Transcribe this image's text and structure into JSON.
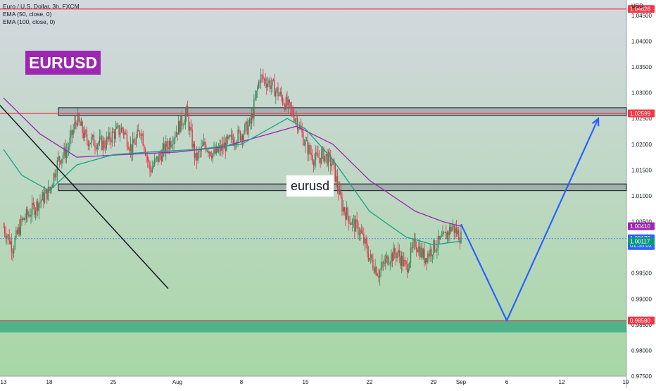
{
  "legend": {
    "symbol": "Euro / U.S. Dollar, 3h, FXCM",
    "ema50": "EMA (50, close, 0)",
    "ema100": "EMA (100, close, 0)"
  },
  "symbol_badge": "EURUSD",
  "text_note": "eurusd",
  "colors": {
    "background_top": "#d3d8df",
    "background_bottom": "#a7d7a5",
    "bull": "#2e8b57",
    "bear": "#ef2e4a",
    "ema50": "#14a38b",
    "ema100": "#9c27b0",
    "resistance_line": "#f23645",
    "projection": "#2962ff",
    "zone_fill": "#8a9098",
    "demand_zone": "#26a27c",
    "badge": "#9c27b0"
  },
  "chart_data": {
    "type": "candlestick",
    "symbol": "EURUSD",
    "timeframe": "3h",
    "currency": "USD",
    "ylim": [
      0.975,
      1.048
    ],
    "y_ticks": [
      "1.04500",
      "1.04000",
      "1.03500",
      "1.03000",
      "1.02500",
      "1.02000",
      "1.01500",
      "1.01000",
      "1.00500",
      "0.99500",
      "0.99000",
      "0.98500",
      "0.98000",
      "0.97500"
    ],
    "x_ticks": [
      {
        "label": "13",
        "date": "2022-07-13"
      },
      {
        "label": "18",
        "date": "2022-07-18"
      },
      {
        "label": "25",
        "date": "2022-07-25"
      },
      {
        "label": "Aug",
        "date": "2022-08-01"
      },
      {
        "label": "8",
        "date": "2022-08-08"
      },
      {
        "label": "15",
        "date": "2022-08-15"
      },
      {
        "label": "22",
        "date": "2022-08-22"
      },
      {
        "label": "29",
        "date": "2022-08-29"
      },
      {
        "label": "Sep",
        "date": "2022-09-01"
      },
      {
        "label": "6",
        "date": "2022-09-06"
      },
      {
        "label": "12",
        "date": "2022-09-12"
      },
      {
        "label": "19",
        "date": "2022-09-19"
      }
    ],
    "price_path": [
      [
        "2022-07-13",
        1.004
      ],
      [
        "2022-07-14",
        1.0
      ],
      [
        "2022-07-15",
        1.005
      ],
      [
        "2022-07-17",
        1.009
      ],
      [
        "2022-07-18",
        1.011
      ],
      [
        "2022-07-19",
        1.017
      ],
      [
        "2022-07-20",
        1.019
      ],
      [
        "2022-07-21",
        1.025
      ],
      [
        "2022-07-22",
        1.021
      ],
      [
        "2022-07-24",
        1.02
      ],
      [
        "2022-07-25",
        1.022
      ],
      [
        "2022-07-26",
        1.023
      ],
      [
        "2022-07-27",
        1.019
      ],
      [
        "2022-07-28",
        1.023
      ],
      [
        "2022-07-29",
        1.015
      ],
      [
        "2022-07-31",
        1.02
      ],
      [
        "2022-08-01",
        1.023
      ],
      [
        "2022-08-02",
        1.026
      ],
      [
        "2022-08-03",
        1.017
      ],
      [
        "2022-08-04",
        1.02
      ],
      [
        "2022-08-05",
        1.018
      ],
      [
        "2022-08-07",
        1.021
      ],
      [
        "2022-08-08",
        1.022
      ],
      [
        "2022-08-09",
        1.024
      ],
      [
        "2022-08-10",
        1.033
      ],
      [
        "2022-08-11",
        1.032
      ],
      [
        "2022-08-12",
        1.03
      ],
      [
        "2022-08-14",
        1.025
      ],
      [
        "2022-08-15",
        1.02
      ],
      [
        "2022-08-16",
        1.017
      ],
      [
        "2022-08-17",
        1.018
      ],
      [
        "2022-08-18",
        1.016
      ],
      [
        "2022-08-19",
        1.008
      ],
      [
        "2022-08-20",
        1.005
      ],
      [
        "2022-08-21",
        1.003
      ],
      [
        "2022-08-22",
        0.998
      ],
      [
        "2022-08-23",
        0.995
      ],
      [
        "2022-08-24",
        0.998
      ],
      [
        "2022-08-25",
        0.999
      ],
      [
        "2022-08-26",
        0.996
      ],
      [
        "2022-08-27",
        1.001
      ],
      [
        "2022-08-28",
        0.998
      ],
      [
        "2022-08-29",
        1.0
      ],
      [
        "2022-08-30",
        1.0015
      ],
      [
        "2022-08-31",
        1.004
      ],
      [
        "2022-09-01",
        1.002
      ]
    ],
    "ema50_path": [
      [
        "2022-07-13",
        1.019
      ],
      [
        "2022-07-15",
        1.014
      ],
      [
        "2022-07-18",
        1.011
      ],
      [
        "2022-07-21",
        1.016
      ],
      [
        "2022-07-25",
        1.018
      ],
      [
        "2022-07-29",
        1.0185
      ],
      [
        "2022-08-03",
        1.019
      ],
      [
        "2022-08-08",
        1.02
      ],
      [
        "2022-08-11",
        1.023
      ],
      [
        "2022-08-13",
        1.025
      ],
      [
        "2022-08-15",
        1.023
      ],
      [
        "2022-08-18",
        1.017
      ],
      [
        "2022-08-22",
        1.007
      ],
      [
        "2022-08-26",
        1.002
      ],
      [
        "2022-08-29",
        1.0005
      ],
      [
        "2022-09-01",
        1.0012
      ]
    ],
    "ema100_path": [
      [
        "2022-07-13",
        1.029
      ],
      [
        "2022-07-17",
        1.022
      ],
      [
        "2022-07-21",
        1.0175
      ],
      [
        "2022-07-26",
        1.018
      ],
      [
        "2022-08-01",
        1.0185
      ],
      [
        "2022-08-06",
        1.0195
      ],
      [
        "2022-08-10",
        1.0215
      ],
      [
        "2022-08-14",
        1.0235
      ],
      [
        "2022-08-18",
        1.02
      ],
      [
        "2022-08-22",
        1.013
      ],
      [
        "2022-08-27",
        1.007
      ],
      [
        "2022-08-30",
        1.005
      ],
      [
        "2022-09-01",
        1.0041
      ]
    ],
    "price_labels": [
      {
        "value": 1.04626,
        "text": "1.04626",
        "role": "high"
      },
      {
        "value": 1.02599,
        "text": "1.02599",
        "role": "resistance"
      },
      {
        "value": 1.0041,
        "text": "1.00410",
        "role": "ema100"
      },
      {
        "value": 1.0017,
        "text": "1.00170",
        "role": "last_price",
        "countdown": "01:35:02"
      },
      {
        "value": 1.00117,
        "text": "1.00117",
        "role": "ema50"
      },
      {
        "value": 0.9858,
        "text": "0.98580",
        "role": "support"
      }
    ],
    "horizontal_lines": [
      1.04626,
      1.02599,
      0.9858
    ],
    "zones": [
      {
        "name": "upper-range",
        "from": 1.0256,
        "to": 1.0271,
        "start": "2022-07-19",
        "end": "2022-09-22"
      },
      {
        "name": "lower-range",
        "from": 1.011,
        "to": 1.0123,
        "start": "2022-07-19",
        "end": "2022-09-22"
      },
      {
        "name": "demand-zone",
        "from": 0.9835,
        "to": 0.9858,
        "start": "2022-07-13",
        "end": "2022-09-22"
      }
    ],
    "trendline": [
      [
        "2022-07-13",
        1.028
      ],
      [
        "2022-07-31",
        0.992
      ]
    ],
    "projection": [
      [
        "2022-09-01",
        1.0045
      ],
      [
        "2022-09-06",
        0.9858
      ],
      [
        "2022-09-16",
        1.025
      ]
    ]
  }
}
